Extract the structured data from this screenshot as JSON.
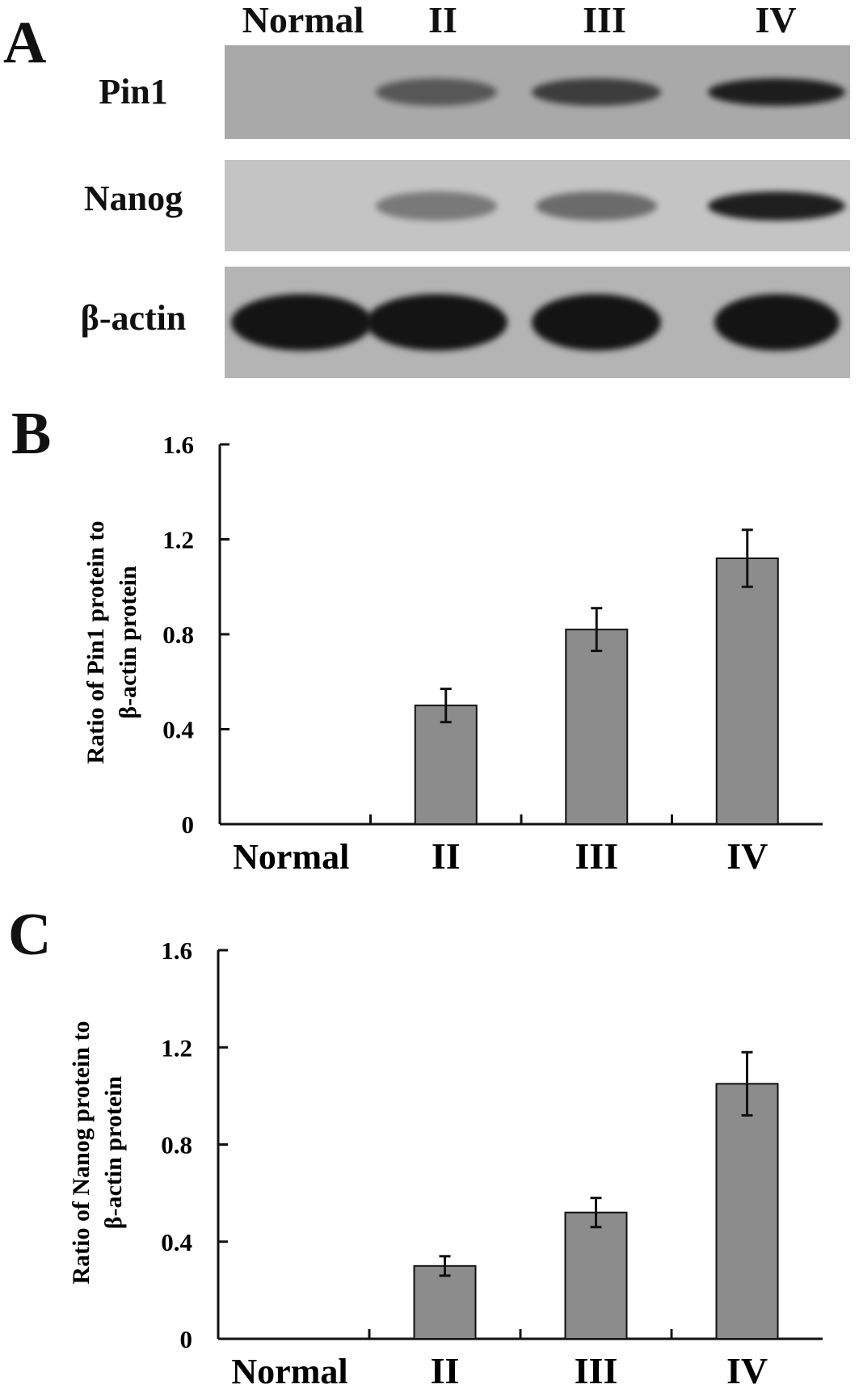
{
  "panels": {
    "a": "A",
    "b": "B",
    "c": "C"
  },
  "blot": {
    "lanes": [
      "Normal",
      "II",
      "III",
      "IV"
    ],
    "rows": [
      {
        "label": "Pin1",
        "band_intensity": [
          0.0,
          0.55,
          0.75,
          0.95
        ]
      },
      {
        "label": "Nanog",
        "band_intensity": [
          0.0,
          0.35,
          0.45,
          0.95
        ]
      },
      {
        "label": "β-actin",
        "band_intensity": [
          1.0,
          1.0,
          1.0,
          1.0
        ]
      }
    ]
  },
  "chart_data": [
    {
      "type": "bar",
      "categories": [
        "Normal",
        "II",
        "III",
        "IV"
      ],
      "values": [
        0,
        0.5,
        0.82,
        1.12
      ],
      "errors": [
        0,
        0.07,
        0.09,
        0.12
      ],
      "ylabel_line1": "Ratio of Pin1 protein to",
      "ylabel_line2": "β-actin protein",
      "ylim": [
        0,
        1.6
      ],
      "yticks": [
        "0",
        "0.4",
        "0.8",
        "1.2",
        "1.6"
      ],
      "bar_color": "#8c8c8c",
      "grid": false
    },
    {
      "type": "bar",
      "categories": [
        "Normal",
        "II",
        "III",
        "IV"
      ],
      "values": [
        0,
        0.3,
        0.52,
        1.05
      ],
      "errors": [
        0,
        0.04,
        0.06,
        0.13
      ],
      "ylabel_line1": "Ratio of Nanog protein to",
      "ylabel_line2": "β-actin protein",
      "ylim": [
        0,
        1.6
      ],
      "yticks": [
        "0",
        "0.4",
        "0.8",
        "1.2",
        "1.6"
      ],
      "bar_color": "#8c8c8c",
      "grid": false
    }
  ]
}
